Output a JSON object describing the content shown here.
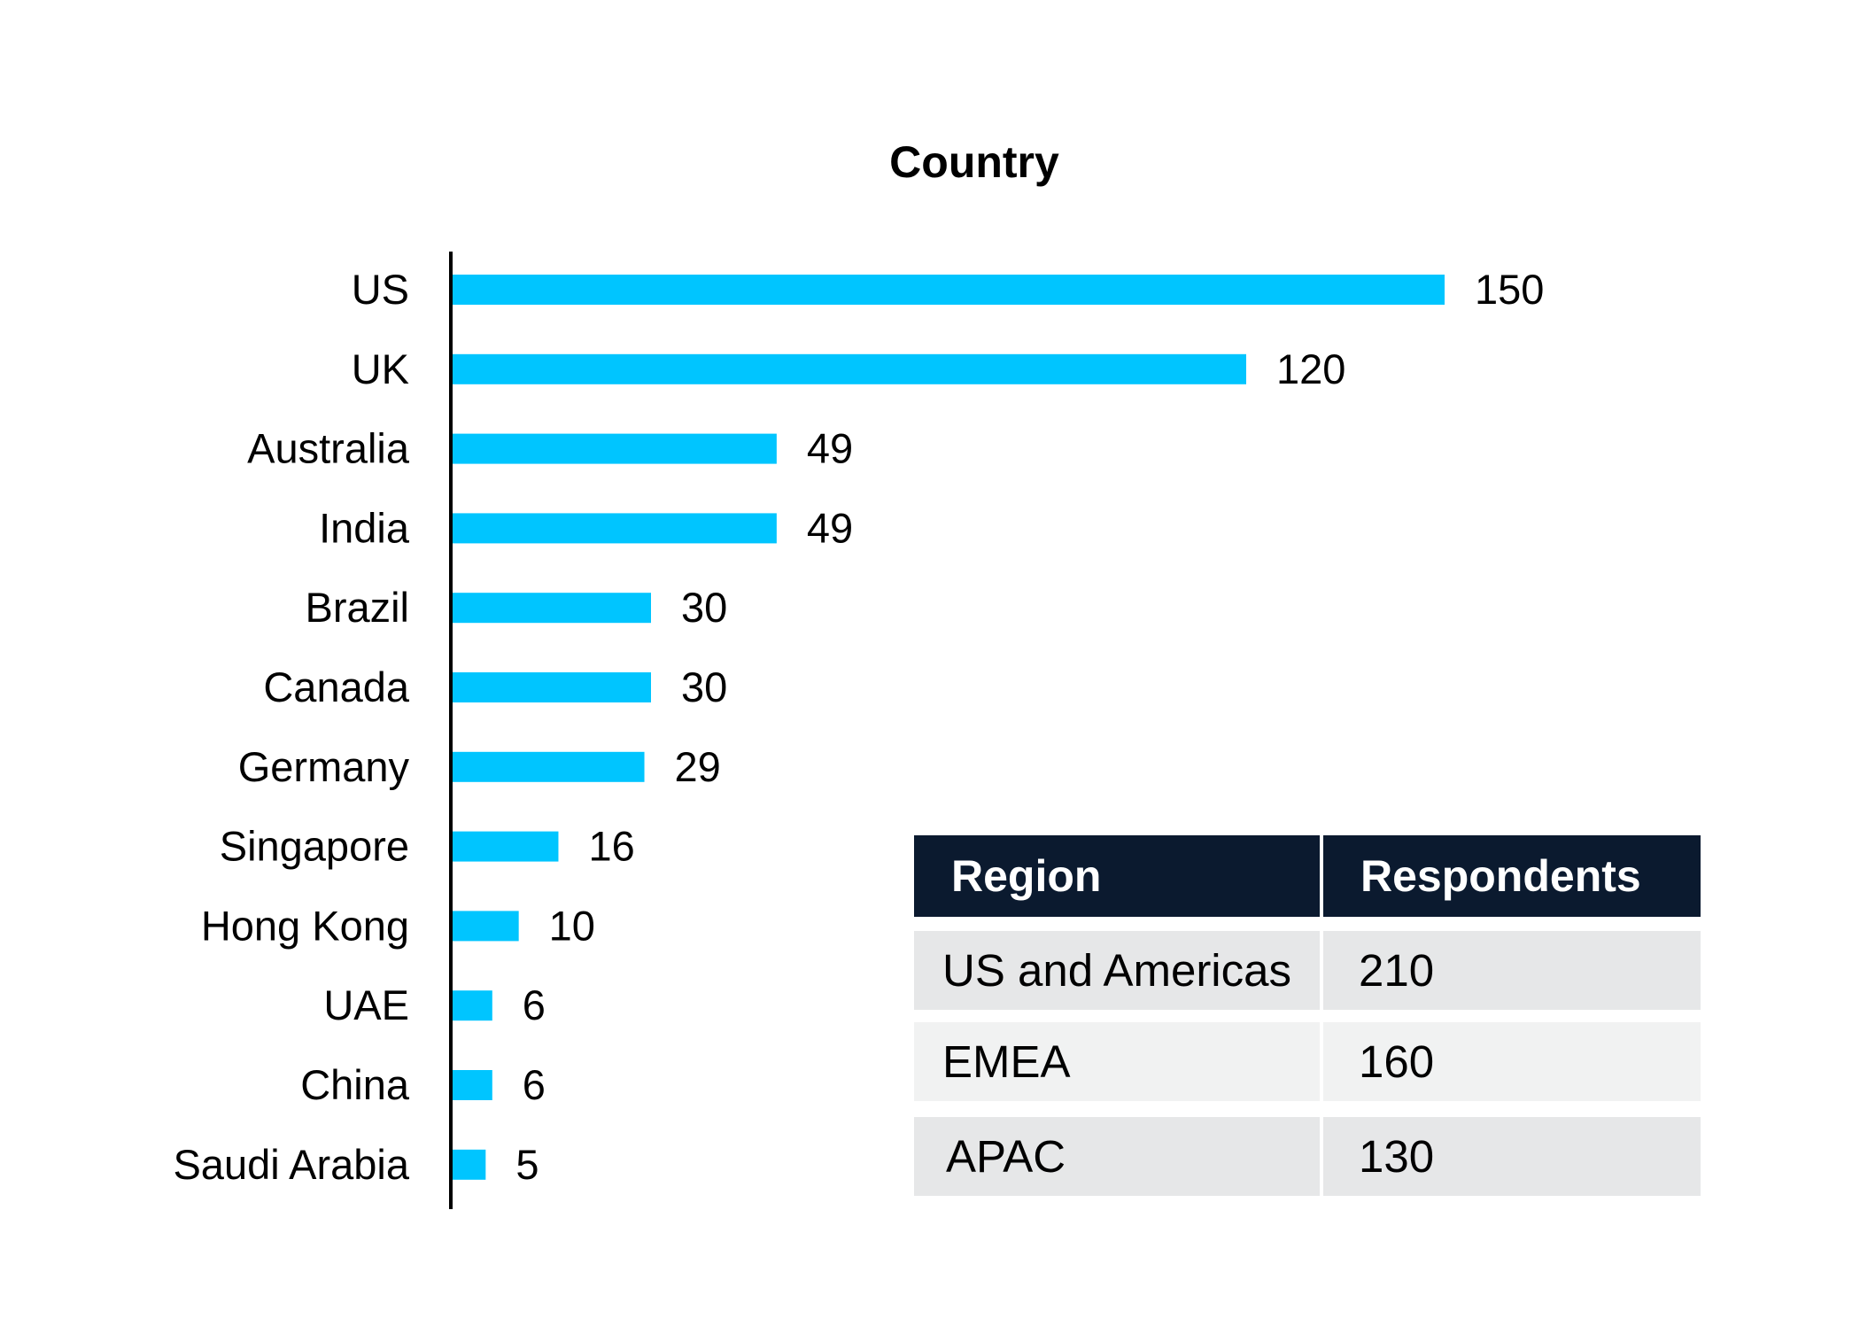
{
  "chart_data": {
    "type": "bar",
    "orientation": "horizontal",
    "title": "Country",
    "categories": [
      "US",
      "UK",
      "Australia",
      "India",
      "Brazil",
      "Canada",
      "Germany",
      "Singapore",
      "Hong Kong",
      "UAE",
      "China",
      "Saudi Arabia"
    ],
    "values": [
      150,
      120,
      49,
      49,
      30,
      30,
      29,
      16,
      10,
      6,
      6,
      5
    ],
    "xlim": [
      0,
      150
    ],
    "grid": false,
    "bar_color": "#00c5ff"
  },
  "region_table": {
    "headers": [
      "Region",
      "Respondents"
    ],
    "rows": [
      [
        "US and Americas",
        "210"
      ],
      [
        "EMEA",
        "160"
      ],
      [
        "APAC",
        "130"
      ]
    ],
    "header_color": "#0b1a2f",
    "row_colors": [
      "#e6e7e8",
      "#f1f2f2",
      "#e6e7e8"
    ]
  }
}
